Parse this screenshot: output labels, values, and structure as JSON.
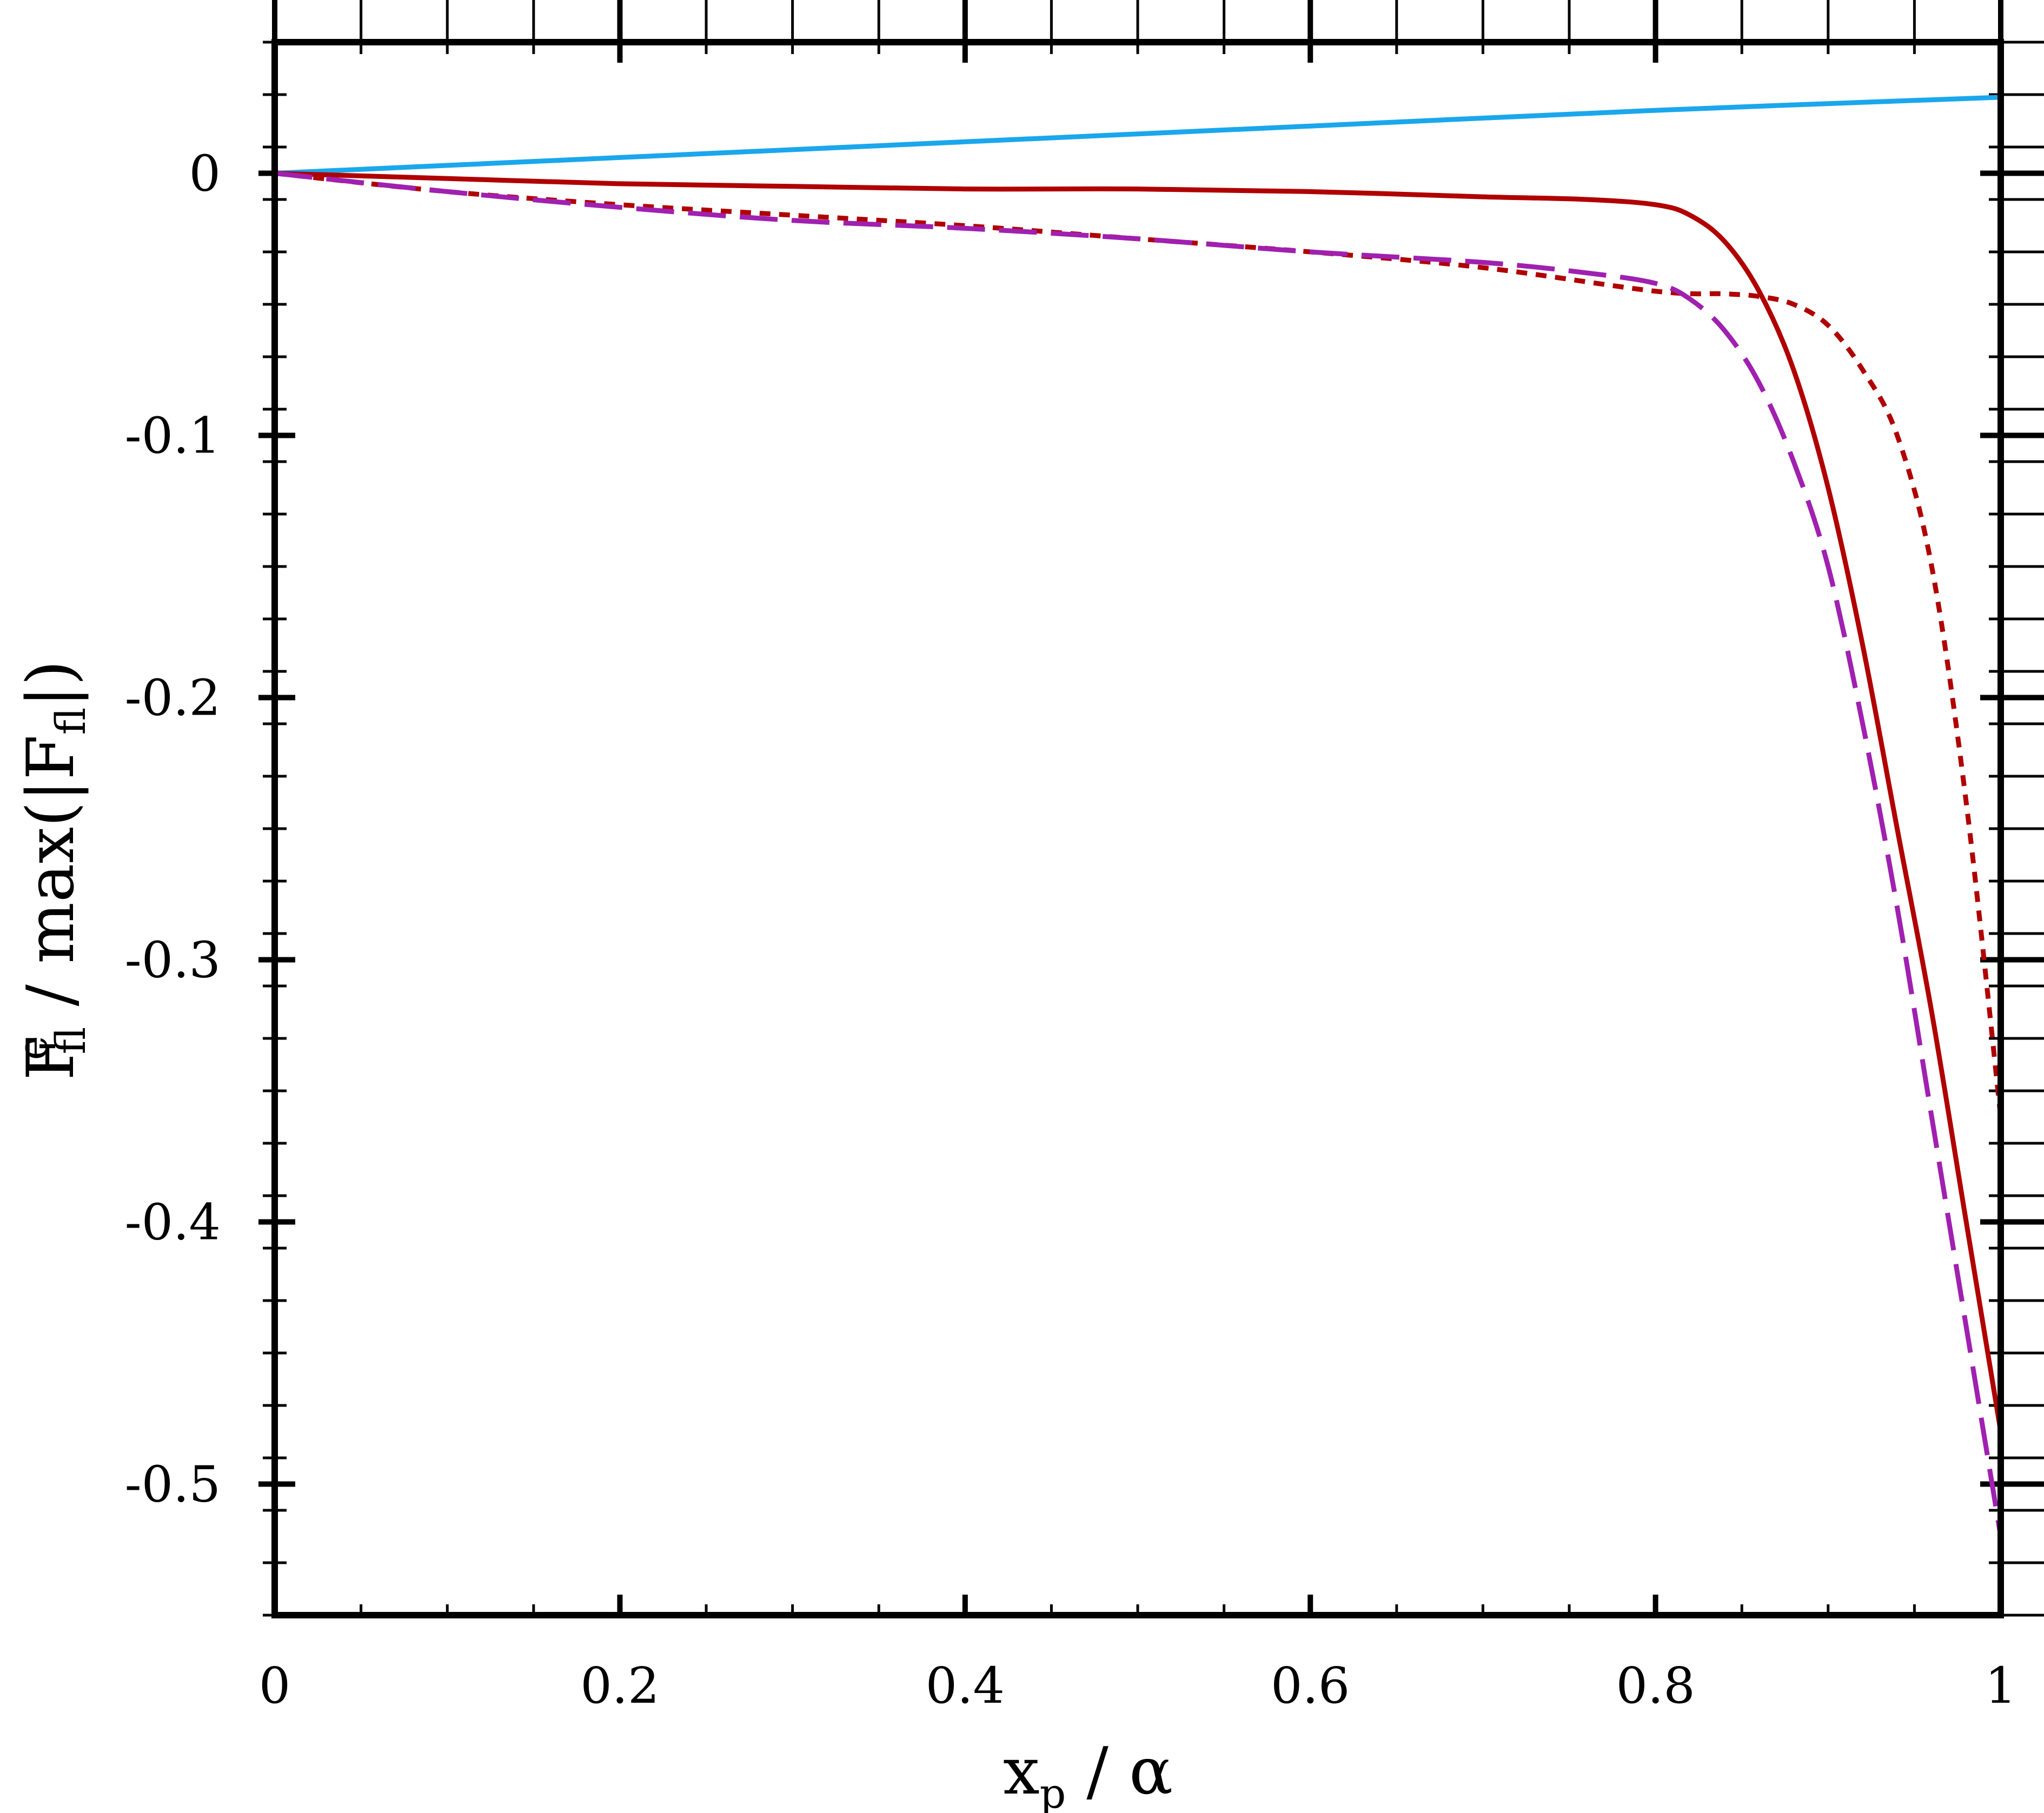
{
  "chart_data": {
    "type": "line",
    "xlabel": {
      "main": "x",
      "sub": "p",
      "rest": " / α"
    },
    "ylabel": {
      "main": "F",
      "sub1": "fl",
      "sup": "e",
      "middle": " / max(|F",
      "sub2": "fl",
      "end": "|)"
    },
    "xlim": [
      0,
      1
    ],
    "ylim": [
      -0.55,
      0.05
    ],
    "x_ticks": [
      0,
      0.2,
      0.4,
      0.6,
      0.8,
      1
    ],
    "x_tick_labels": [
      "0",
      "0.2",
      "0.4",
      "0.6",
      "0.8",
      "1"
    ],
    "y_ticks": [
      0,
      -0.1,
      -0.2,
      -0.3,
      -0.4,
      -0.5
    ],
    "y_tick_labels": [
      "0",
      "-0.1",
      "-0.2",
      "-0.3",
      "-0.4",
      "-0.5"
    ],
    "grid": false,
    "legend": "none",
    "series": [
      {
        "color": "#1aa7ec",
        "style": "solid",
        "x": [
          0,
          0.2,
          0.4,
          0.6,
          0.8,
          1.0
        ],
        "y": [
          0,
          0.006,
          0.012,
          0.018,
          0.024,
          0.029
        ]
      },
      {
        "color": "#b00000",
        "style": "solid",
        "x": [
          0,
          0.1,
          0.2,
          0.3,
          0.4,
          0.5,
          0.6,
          0.7,
          0.76,
          0.8,
          0.82,
          0.84,
          0.86,
          0.88,
          0.9,
          0.92,
          0.94,
          0.96,
          0.98,
          1.0
        ],
        "y": [
          0,
          -0.002,
          -0.004,
          -0.005,
          -0.006,
          -0.006,
          -0.007,
          -0.009,
          -0.01,
          -0.012,
          -0.016,
          -0.026,
          -0.045,
          -0.075,
          -0.12,
          -0.18,
          -0.25,
          -0.32,
          -0.4,
          -0.48
        ]
      },
      {
        "color": "#b00000",
        "style": "dotted",
        "x": [
          0,
          0.1,
          0.2,
          0.3,
          0.4,
          0.5,
          0.6,
          0.7,
          0.8,
          0.84,
          0.86,
          0.88,
          0.9,
          0.92,
          0.94,
          0.96,
          0.98,
          1.0
        ],
        "y": [
          0,
          -0.007,
          -0.012,
          -0.016,
          -0.02,
          -0.025,
          -0.03,
          -0.036,
          -0.045,
          -0.046,
          -0.047,
          -0.05,
          -0.058,
          -0.075,
          -0.1,
          -0.15,
          -0.24,
          -0.36
        ]
      },
      {
        "color": "#a020b0",
        "style": "dashed",
        "x": [
          0,
          0.1,
          0.2,
          0.3,
          0.4,
          0.5,
          0.6,
          0.7,
          0.76,
          0.8,
          0.82,
          0.84,
          0.86,
          0.88,
          0.9,
          0.92,
          0.94,
          0.96,
          0.98,
          1.0
        ],
        "y": [
          0,
          -0.007,
          -0.013,
          -0.018,
          -0.021,
          -0.025,
          -0.03,
          -0.034,
          -0.038,
          -0.042,
          -0.048,
          -0.06,
          -0.08,
          -0.11,
          -0.15,
          -0.21,
          -0.28,
          -0.36,
          -0.44,
          -0.52
        ]
      }
    ]
  }
}
